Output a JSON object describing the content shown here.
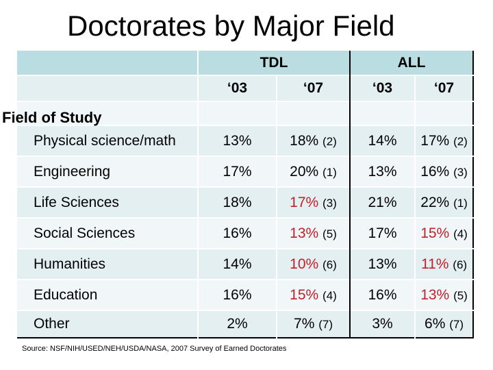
{
  "title": "Doctorates by Major Field",
  "groups": [
    "TDL",
    "ALL"
  ],
  "years": [
    "‘03",
    "‘07",
    "‘03",
    "‘07"
  ],
  "row_header": "Field of Study",
  "rows": [
    {
      "field": "Physical science/math",
      "tdl03": "13%",
      "tdl07": "18%",
      "tdl07_rank": "(2)",
      "tdl07_red": false,
      "all03": "14%",
      "all07": "17%",
      "all07_rank": "(2)",
      "all07_red": false
    },
    {
      "field": "Engineering",
      "tdl03": "17%",
      "tdl07": "20%",
      "tdl07_rank": "(1)",
      "tdl07_red": false,
      "all03": "13%",
      "all07": "16%",
      "all07_rank": "(3)",
      "all07_red": false
    },
    {
      "field": "Life Sciences",
      "tdl03": "18%",
      "tdl07": "17%",
      "tdl07_rank": "(3)",
      "tdl07_red": true,
      "all03": "21%",
      "all07": "22%",
      "all07_rank": "(1)",
      "all07_red": false
    },
    {
      "field": "Social Sciences",
      "tdl03": "16%",
      "tdl07": "13%",
      "tdl07_rank": "(5)",
      "tdl07_red": true,
      "all03": "17%",
      "all07": "15%",
      "all07_rank": "(4)",
      "all07_red": true
    },
    {
      "field": "Humanities",
      "tdl03": "14%",
      "tdl07": "10%",
      "tdl07_rank": "(6)",
      "tdl07_red": true,
      "all03": "13%",
      "all07": "11%",
      "all07_rank": "(6)",
      "all07_red": true
    },
    {
      "field": "Education",
      "tdl03": "16%",
      "tdl07": "15%",
      "tdl07_rank": "(4)",
      "tdl07_red": true,
      "all03": "16%",
      "all07": "13%",
      "all07_rank": "(5)",
      "all07_red": true
    },
    {
      "field": "Other",
      "tdl03": "2%",
      "tdl07": "7%",
      "tdl07_rank": "(7)",
      "tdl07_red": false,
      "all03": "3%",
      "all07": "6%",
      "all07_rank": "(7)",
      "all07_red": false
    }
  ],
  "source": "Source: NSF/NIH/USED/NEH/USDA/NASA, 2007 Survey of Earned Doctorates",
  "colors": {
    "header": "#b9dde1",
    "decline": "#c0202a"
  }
}
